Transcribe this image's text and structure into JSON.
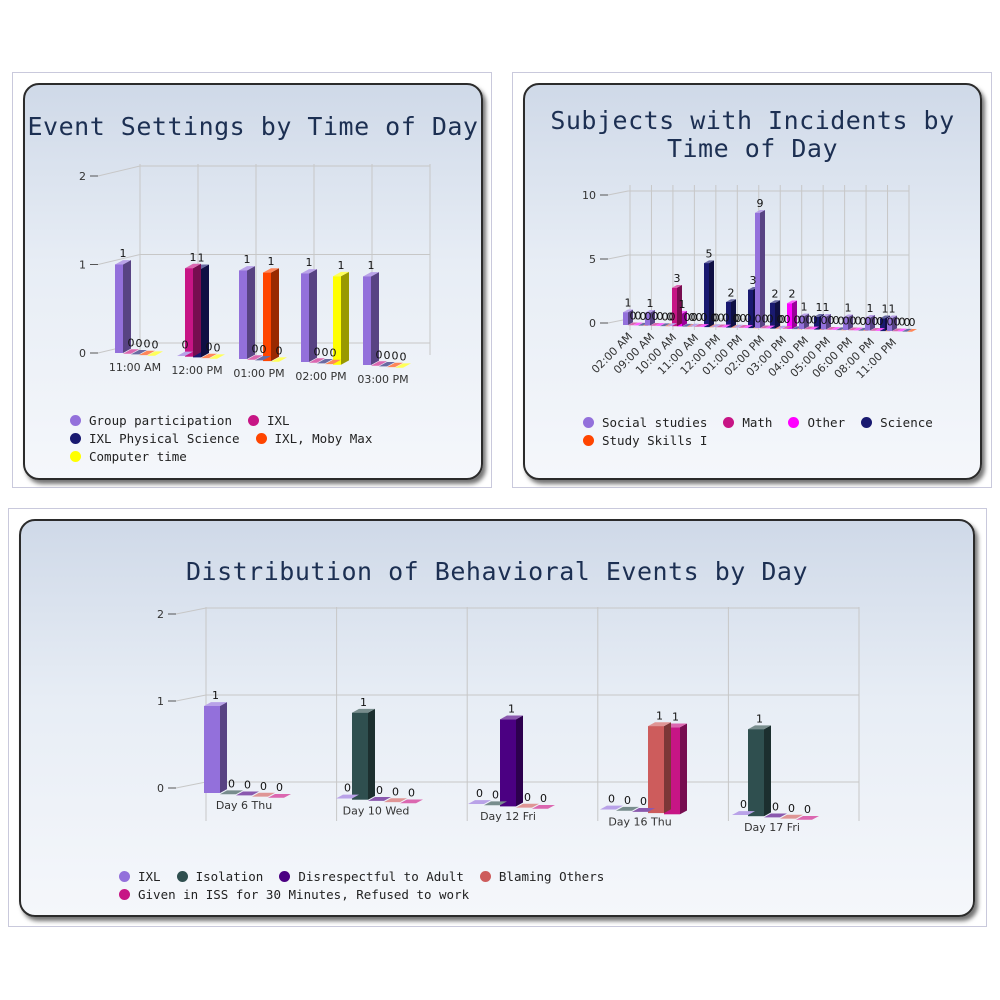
{
  "charts": [
    {
      "title": "Event Settings by Time of Day",
      "chart_data": {
        "type": "bar",
        "title": "Event Settings by Time of Day",
        "categories": [
          "11:00 AM",
          "12:00 PM",
          "01:00 PM",
          "02:00 PM",
          "03:00 PM"
        ],
        "series": [
          {
            "name": "Group participation",
            "color": "#9370db",
            "values": [
              1,
              0,
              1,
              1,
              1
            ]
          },
          {
            "name": "IXL",
            "color": "#c71585",
            "values": [
              0,
              1,
              0,
              0,
              0
            ]
          },
          {
            "name": "IXL Physical Science",
            "color": "#191970",
            "values": [
              0,
              1,
              0,
              0,
              0
            ]
          },
          {
            "name": "IXL, Moby Max",
            "color": "#ff4500",
            "values": [
              0,
              0,
              1,
              0,
              0
            ]
          },
          {
            "name": "Computer time",
            "color": "#ffff00",
            "values": [
              0,
              0,
              0,
              1,
              0
            ]
          }
        ],
        "y_ticks": [
          0,
          1,
          2
        ],
        "ylim": [
          0,
          2
        ],
        "legend_position": "bottom",
        "grid": true
      }
    },
    {
      "title": "Subjects with Incidents by Time of Day",
      "chart_data": {
        "type": "bar",
        "title": "Subjects with Incidents by Time of Day",
        "categories": [
          "02:00 AM",
          "09:00 AM",
          "10:00 AM",
          "11:00 AM",
          "12:00 PM",
          "01:00 PM",
          "02:00 PM",
          "03:00 PM",
          "04:00 PM",
          "05:00 PM",
          "06:00 PM",
          "08:00 PM",
          "11:00 PM"
        ],
        "series": [
          {
            "name": "Social studies",
            "color": "#9370db",
            "values": [
              1,
              1,
              0,
              0,
              0,
              0,
              9,
              0,
              1,
              1,
              1,
              1,
              1
            ]
          },
          {
            "name": "Math",
            "color": "#c71585",
            "values": [
              0,
              0,
              3,
              0,
              0,
              0,
              0,
              0,
              0,
              0,
              0,
              0,
              0
            ]
          },
          {
            "name": "Other",
            "color": "#ff00ff",
            "values": [
              0,
              0,
              1,
              0,
              0,
              0,
              0,
              2,
              0,
              0,
              0,
              0,
              0
            ]
          },
          {
            "name": "Science",
            "color": "#191970",
            "values": [
              0,
              0,
              0,
              5,
              2,
              3,
              2,
              0,
              1,
              0,
              0,
              1,
              0
            ]
          },
          {
            "name": "Study Skills I",
            "color": "#ff4500",
            "values": [
              0,
              0,
              0,
              0,
              0,
              0,
              0,
              0,
              0,
              0,
              0,
              0,
              0
            ]
          }
        ],
        "y_ticks": [
          0,
          5,
          10
        ],
        "ylim": [
          0,
          10
        ],
        "legend_position": "bottom",
        "grid": true
      }
    },
    {
      "title": "Distribution of Behavioral Events by Day",
      "chart_data": {
        "type": "bar",
        "title": "Distribution of Behavioral Events by Day",
        "categories": [
          "Day 6 Thu",
          "Day 10 Wed",
          "Day 12 Fri",
          "Day 16 Thu",
          "Day 17 Fri"
        ],
        "series": [
          {
            "name": "IXL",
            "color": "#9370db",
            "values": [
              1,
              0,
              0,
              0,
              0
            ]
          },
          {
            "name": "Isolation",
            "color": "#2f4f4f",
            "values": [
              0,
              1,
              0,
              0,
              1
            ]
          },
          {
            "name": "Disrespectful to Adult",
            "color": "#4b0082",
            "values": [
              0,
              0,
              1,
              0,
              0
            ]
          },
          {
            "name": "Blaming Others",
            "color": "#cd5c5c",
            "values": [
              0,
              0,
              0,
              1,
              0
            ]
          },
          {
            "name": "Given in ISS for 30 Minutes, Refused to work",
            "color": "#c71585",
            "values": [
              0,
              0,
              0,
              1,
              0
            ]
          }
        ],
        "y_ticks": [
          0,
          1,
          2
        ],
        "ylim": [
          0,
          2
        ],
        "legend_position": "bottom",
        "grid": true
      }
    }
  ]
}
